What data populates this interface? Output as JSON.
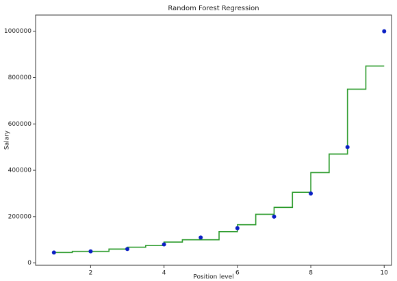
{
  "chart_data": {
    "type": "scatter",
    "title": "Random Forest Regression",
    "xlabel": "Position level",
    "ylabel": "Salary",
    "series": [
      {
        "type": "scatter",
        "color": "#0a1fc4",
        "x": [
          1,
          2,
          3,
          4,
          5,
          6,
          7,
          8,
          9,
          10
        ],
        "values": [
          45000,
          50000,
          60000,
          80000,
          110000,
          150000,
          200000,
          300000,
          500000,
          1000000
        ]
      },
      {
        "type": "step",
        "color": "#2a9a2a",
        "x": [
          1,
          1.5,
          2.5,
          3,
          3.5,
          4,
          4.5,
          5.5,
          6,
          6.5,
          7,
          7.5,
          8,
          8.5,
          9,
          9.5,
          10
        ],
        "values": [
          45000,
          50000,
          60000,
          68000,
          75000,
          90000,
          100000,
          135000,
          165000,
          210000,
          240000,
          305000,
          390000,
          470000,
          750000,
          850000,
          850000
        ]
      }
    ],
    "xlim": [
      0.5,
      10.2
    ],
    "ylim": [
      -10000,
      1070000
    ],
    "xticks": [
      2,
      4,
      6,
      8,
      10
    ],
    "yticks": [
      0,
      200000,
      400000,
      600000,
      800000,
      1000000
    ]
  }
}
